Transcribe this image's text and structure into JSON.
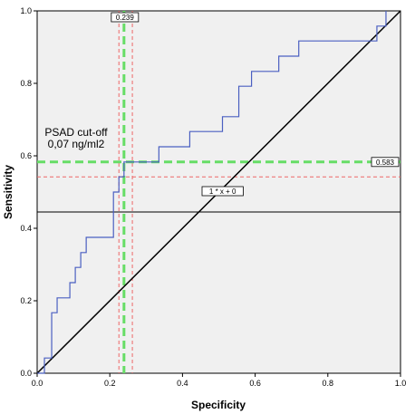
{
  "chart_data": {
    "type": "line",
    "title": "",
    "xlabel": "Specificity",
    "ylabel": "Sensitivity",
    "xlim": [
      0,
      1
    ],
    "ylim": [
      0,
      1
    ],
    "x_ticks": [
      "0.0",
      "0.2",
      "0.4",
      "0.6",
      "0.8",
      "1.0"
    ],
    "y_ticks": [
      "0.0",
      "0.2",
      "0.4",
      "0.6",
      "0.8",
      "1.0"
    ],
    "grid": false,
    "series": [
      {
        "kind": "step",
        "color": "#4a5fc1",
        "points": [
          [
            0.0,
            0.0
          ],
          [
            0.02,
            0.0
          ],
          [
            0.02,
            0.042
          ],
          [
            0.04,
            0.042
          ],
          [
            0.04,
            0.167
          ],
          [
            0.055,
            0.167
          ],
          [
            0.055,
            0.208
          ],
          [
            0.09,
            0.208
          ],
          [
            0.09,
            0.25
          ],
          [
            0.105,
            0.25
          ],
          [
            0.105,
            0.292
          ],
          [
            0.12,
            0.292
          ],
          [
            0.12,
            0.333
          ],
          [
            0.135,
            0.333
          ],
          [
            0.135,
            0.375
          ],
          [
            0.21,
            0.375
          ],
          [
            0.21,
            0.5
          ],
          [
            0.225,
            0.5
          ],
          [
            0.225,
            0.542
          ],
          [
            0.239,
            0.542
          ],
          [
            0.239,
            0.583
          ],
          [
            0.335,
            0.583
          ],
          [
            0.335,
            0.625
          ],
          [
            0.42,
            0.625
          ],
          [
            0.42,
            0.667
          ],
          [
            0.51,
            0.667
          ],
          [
            0.51,
            0.708
          ],
          [
            0.555,
            0.708
          ],
          [
            0.555,
            0.792
          ],
          [
            0.59,
            0.792
          ],
          [
            0.59,
            0.833
          ],
          [
            0.665,
            0.833
          ],
          [
            0.665,
            0.875
          ],
          [
            0.72,
            0.875
          ],
          [
            0.72,
            0.917
          ],
          [
            0.935,
            0.917
          ],
          [
            0.935,
            0.958
          ],
          [
            0.96,
            0.958
          ],
          [
            0.96,
            1.0
          ]
        ]
      }
    ],
    "diagonal": {
      "color": "#000000",
      "label": "1 * x + 0"
    },
    "reference_lines": [
      {
        "orientation": "vertical",
        "value": 0.239,
        "color": "#66dd66",
        "style": "dashed-thick",
        "label": "0.239"
      },
      {
        "orientation": "vertical",
        "value": 0.225,
        "color": "#ee6666",
        "style": "dashed-thin"
      },
      {
        "orientation": "vertical",
        "value": 0.262,
        "color": "#ee6666",
        "style": "dashed-thin"
      },
      {
        "orientation": "horizontal",
        "value": 0.583,
        "color": "#66dd66",
        "style": "dashed-thick",
        "label": "0.583"
      },
      {
        "orientation": "horizontal",
        "value": 0.542,
        "color": "#ee6666",
        "style": "dashed-thin"
      },
      {
        "orientation": "horizontal",
        "value": 0.445,
        "color": "#000000",
        "style": "solid"
      }
    ],
    "annotations": {
      "cutoff_line1": "PSAD cut-off",
      "cutoff_line2": "0,07 ng/ml2"
    },
    "background_color": "#f0f0f0"
  }
}
